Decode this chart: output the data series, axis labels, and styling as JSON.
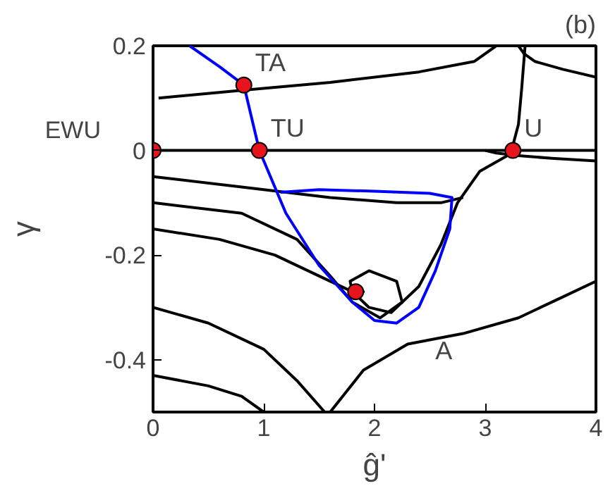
{
  "chart_data": {
    "type": "line",
    "xlabel": "ĝ'",
    "ylabel": "γ",
    "xlim": [
      0,
      4
    ],
    "ylim": [
      -0.5,
      0.2
    ],
    "xticks": [
      0,
      1,
      2,
      3,
      4
    ],
    "yticks": [
      -0.4,
      -0.2,
      0,
      0.2
    ],
    "grid": false,
    "line_style": "solid",
    "series": [
      {
        "color": "#000000",
        "x": [
          0,
          1,
          2,
          3,
          4
        ],
        "values": [
          0,
          0,
          0,
          0,
          0
        ]
      },
      {
        "color": "#000000",
        "x": [
          0.05,
          0.8,
          1.6,
          2.4,
          2.9,
          3.1
        ],
        "values": [
          0.1,
          0.115,
          0.13,
          0.15,
          0.17,
          0.2
        ]
      },
      {
        "color": "#000000",
        "x": [
          3.25,
          3.3,
          3.33,
          3.36
        ],
        "values": [
          0.01,
          0.05,
          0.12,
          0.2
        ]
      },
      {
        "color": "#000000",
        "x": [
          4,
          3.7,
          3.45,
          3.35,
          3.3
        ],
        "values": [
          0.14,
          0.155,
          0.17,
          0.185,
          0.2
        ]
      },
      {
        "color": "#000000",
        "x": [
          0,
          0.8,
          1.6,
          2.2,
          2.6,
          2.8
        ],
        "values": [
          -0.05,
          -0.07,
          -0.09,
          -0.1,
          -0.1,
          -0.09
        ]
      },
      {
        "color": "#000000",
        "x": [
          3.2,
          2.95,
          2.75,
          2.6,
          2.4,
          2.15,
          1.95,
          1.85
        ],
        "values": [
          -0.01,
          -0.04,
          -0.1,
          -0.18,
          -0.26,
          -0.31,
          -0.3,
          -0.28
        ]
      },
      {
        "color": "#000000",
        "x": [
          0,
          0.8,
          1.3,
          1.6,
          1.8,
          2.05,
          2.25,
          2.2,
          1.95,
          1.78,
          1.8
        ],
        "values": [
          -0.1,
          -0.12,
          -0.17,
          -0.24,
          -0.29,
          -0.32,
          -0.29,
          -0.25,
          -0.23,
          -0.25,
          -0.27
        ]
      },
      {
        "color": "#000000",
        "x": [
          0,
          0.6,
          1.1,
          1.5,
          1.8,
          1.9,
          1.85
        ],
        "values": [
          -0.15,
          -0.17,
          -0.2,
          -0.24,
          -0.27,
          -0.27,
          -0.26
        ]
      },
      {
        "color": "#000000",
        "x": [
          0,
          0.5,
          1.0,
          1.3,
          1.55
        ],
        "values": [
          -0.3,
          -0.33,
          -0.38,
          -0.44,
          -0.5
        ]
      },
      {
        "color": "#000000",
        "x": [
          0,
          0.5,
          0.8,
          1.0
        ],
        "values": [
          -0.43,
          -0.45,
          -0.47,
          -0.5
        ]
      },
      {
        "color": "#000000",
        "x": [
          1.6,
          1.9,
          2.3,
          2.8,
          3.3,
          3.7,
          4
        ],
        "values": [
          -0.5,
          -0.42,
          -0.37,
          -0.35,
          -0.32,
          -0.28,
          -0.25
        ]
      },
      {
        "color": "#000000",
        "x": [
          4,
          3.6,
          3.3,
          3.1,
          3.0
        ],
        "values": [
          -0.02,
          -0.015,
          -0.01,
          -0.005,
          0
        ]
      },
      {
        "color": "#0000ff",
        "x": [
          0.33,
          0.6,
          0.82,
          0.96,
          1.2,
          1.5,
          1.8,
          2.0,
          2.2,
          2.4,
          2.55,
          2.68,
          2.7,
          2.5,
          2.0,
          1.5,
          1.15
        ],
        "values": [
          0.2,
          0.16,
          0.125,
          0,
          -0.12,
          -0.22,
          -0.29,
          -0.325,
          -0.33,
          -0.3,
          -0.23,
          -0.15,
          -0.09,
          -0.082,
          -0.078,
          -0.075,
          -0.08
        ]
      },
      {
        "type": "scatter",
        "marker": "circle",
        "color": "#e8141b",
        "x": [
          0,
          0.82,
          0.96,
          3.25,
          1.83
        ],
        "values": [
          0,
          0.125,
          0,
          0,
          -0.27
        ]
      }
    ],
    "annotations": [
      {
        "text": "EWU",
        "x": 0,
        "y": 0
      },
      {
        "text": "TA",
        "x": 0.82,
        "y": 0.125
      },
      {
        "text": "TU",
        "x": 0.96,
        "y": 0
      },
      {
        "text": "U",
        "x": 3.25,
        "y": 0
      },
      "A",
      "(b)"
    ]
  }
}
